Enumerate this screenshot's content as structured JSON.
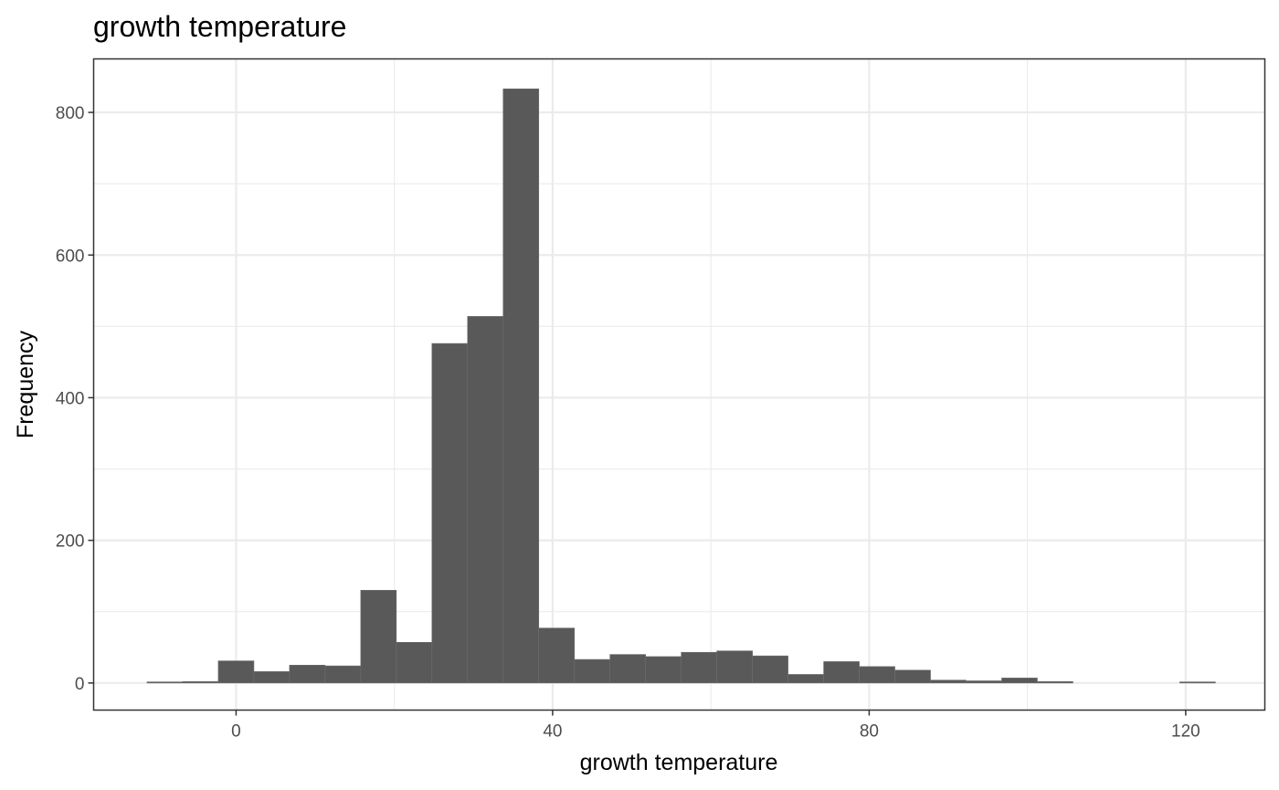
{
  "chart_data": {
    "type": "bar",
    "subtype": "histogram",
    "title": "growth temperature",
    "xlabel": "growth temperature",
    "ylabel": "Frequency",
    "xlim": [
      -18,
      130
    ],
    "ylim": [
      -38,
      875
    ],
    "x_ticks": [
      0,
      40,
      80,
      120
    ],
    "y_ticks": [
      0,
      200,
      400,
      600,
      800
    ],
    "x_tick_labels": [
      "0",
      "40",
      "80",
      "120"
    ],
    "y_tick_labels": [
      "0",
      "200",
      "400",
      "600",
      "800"
    ],
    "x_minor_grid": [
      20,
      60,
      100
    ],
    "y_minor_grid": [
      100,
      300,
      500,
      700
    ],
    "grid": true,
    "bar_color": "#595959",
    "bin_width": 4.5,
    "bins": [
      {
        "x0": -11.25,
        "x1": -6.75,
        "count": 1
      },
      {
        "x0": -6.75,
        "x1": -2.25,
        "count": 2
      },
      {
        "x0": -2.25,
        "x1": 2.25,
        "count": 31
      },
      {
        "x0": 2.25,
        "x1": 6.75,
        "count": 16
      },
      {
        "x0": 6.75,
        "x1": 11.25,
        "count": 25
      },
      {
        "x0": 11.25,
        "x1": 15.75,
        "count": 24
      },
      {
        "x0": 15.75,
        "x1": 20.25,
        "count": 130
      },
      {
        "x0": 20.25,
        "x1": 24.75,
        "count": 57
      },
      {
        "x0": 24.75,
        "x1": 29.25,
        "count": 476
      },
      {
        "x0": 29.25,
        "x1": 33.75,
        "count": 514
      },
      {
        "x0": 33.75,
        "x1": 38.25,
        "count": 833
      },
      {
        "x0": 38.25,
        "x1": 42.75,
        "count": 77
      },
      {
        "x0": 42.75,
        "x1": 47.25,
        "count": 33
      },
      {
        "x0": 47.25,
        "x1": 51.75,
        "count": 40
      },
      {
        "x0": 51.75,
        "x1": 56.25,
        "count": 37
      },
      {
        "x0": 56.25,
        "x1": 60.75,
        "count": 43
      },
      {
        "x0": 60.75,
        "x1": 65.25,
        "count": 45
      },
      {
        "x0": 65.25,
        "x1": 69.75,
        "count": 38
      },
      {
        "x0": 69.75,
        "x1": 74.25,
        "count": 12
      },
      {
        "x0": 74.25,
        "x1": 78.75,
        "count": 30
      },
      {
        "x0": 78.75,
        "x1": 83.25,
        "count": 23
      },
      {
        "x0": 83.25,
        "x1": 87.75,
        "count": 18
      },
      {
        "x0": 87.75,
        "x1": 92.25,
        "count": 4
      },
      {
        "x0": 92.25,
        "x1": 96.75,
        "count": 3
      },
      {
        "x0": 96.75,
        "x1": 101.25,
        "count": 7
      },
      {
        "x0": 101.25,
        "x1": 105.75,
        "count": 2
      },
      {
        "x0": 105.75,
        "x1": 110.25,
        "count": 0
      },
      {
        "x0": 110.25,
        "x1": 114.75,
        "count": 0
      },
      {
        "x0": 114.75,
        "x1": 119.25,
        "count": 0
      },
      {
        "x0": 119.25,
        "x1": 123.75,
        "count": 1
      }
    ]
  }
}
